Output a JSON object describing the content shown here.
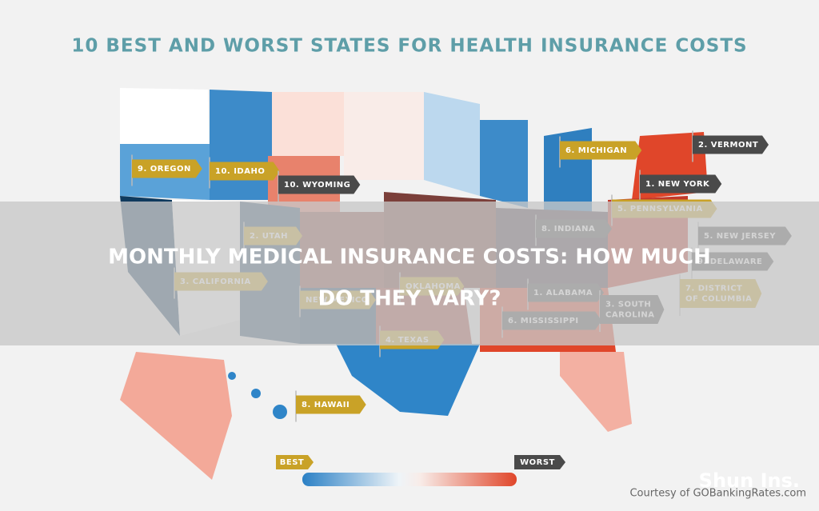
{
  "header": {
    "title": "10 BEST AND WORST STATES FOR HEALTH INSURANCE COSTS"
  },
  "overlay": {
    "title_lines": [
      "MONTHLY MEDICAL INSURANCE COSTS: HOW MUCH",
      "DO THEY VARY?"
    ]
  },
  "labels": [
    {
      "lines": [
        "9. OREGON"
      ],
      "color": "#c9a227"
    },
    {
      "lines": [
        "10. IDAHO"
      ],
      "color": "#c9a227"
    },
    {
      "lines": [
        "10. WYOMING"
      ],
      "color": "#4a4a4a"
    },
    {
      "lines": [
        "6. MICHIGAN"
      ],
      "color": "#c9a227"
    },
    {
      "lines": [
        "2. VERMONT"
      ],
      "color": "#4a4a4a"
    },
    {
      "lines": [
        "1. NEW YORK"
      ],
      "color": "#4a4a4a"
    },
    {
      "lines": [
        "5. PENNSYLVANIA"
      ],
      "color": "#c9a227"
    },
    {
      "lines": [
        "8. INDIANA"
      ],
      "color": "#4a4a4a"
    },
    {
      "lines": [
        "5. NEW JERSEY"
      ],
      "color": "#4a4a4a"
    },
    {
      "lines": [
        "9. DELAWARE"
      ],
      "color": "#4a4a4a"
    },
    {
      "lines": [
        "7. DISTRICT",
        "OF COLUMBIA"
      ],
      "color": "#c9a227"
    },
    {
      "lines": [
        "2. UTAH"
      ],
      "color": "#c9a227"
    },
    {
      "lines": [
        "3. CALIFORNIA"
      ],
      "color": "#c9a227"
    },
    {
      "lines": [
        "NEW MEXICO"
      ],
      "color": "#c9a227"
    },
    {
      "lines": [
        "OKLAHOMA"
      ],
      "color": "#c9a227"
    },
    {
      "lines": [
        "1. ALABAMA"
      ],
      "color": "#4a4a4a"
    },
    {
      "lines": [
        "3. SOUTH",
        "CAROLINA"
      ],
      "color": "#4a4a4a"
    },
    {
      "lines": [
        "6. MISSISSIPPI"
      ],
      "color": "#4a4a4a"
    },
    {
      "lines": [
        "4. TEXAS"
      ],
      "color": "#c9a227"
    },
    {
      "lines": [
        "8. HAWAII"
      ],
      "color": "#c9a227"
    }
  ],
  "legend": {
    "best": "BEST",
    "worst": "WORST"
  },
  "credit": "Courtesy of GOBankingRates.com",
  "watermark": "Shun Ins."
}
